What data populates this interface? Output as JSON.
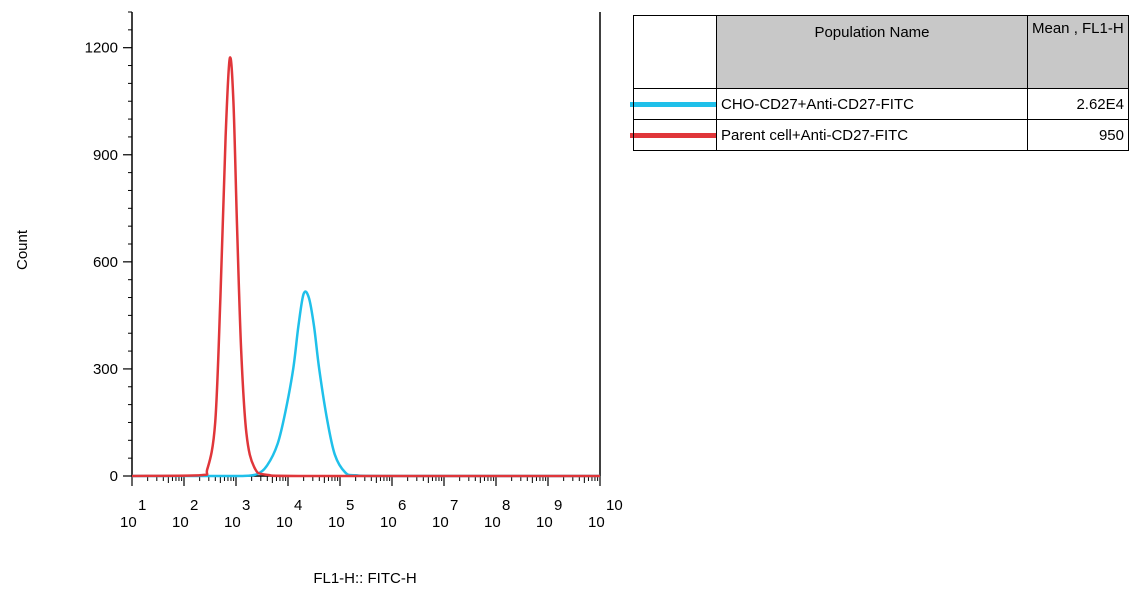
{
  "chart_data": {
    "type": "line",
    "title": "",
    "xlabel": "FL1-H:: FITC-H",
    "ylabel": "Count",
    "x_scale": "log",
    "xlim": [
      1,
      10
    ],
    "ylim": [
      0,
      1300
    ],
    "y_ticks": [
      0,
      300,
      600,
      900,
      1200
    ],
    "x_tick_exponents": [
      "1",
      "2",
      "3",
      "4",
      "5",
      "6",
      "7",
      "8",
      "9",
      "10"
    ],
    "x_tick_base": "10",
    "series": [
      {
        "name": "CHO-CD27+Anti-CD27-FITC",
        "color": "#1fc0ea",
        "x": [
          1.0,
          2.8,
          3.1,
          3.4,
          3.6,
          3.8,
          3.95,
          4.1,
          4.2,
          4.3,
          4.4,
          4.5,
          4.6,
          4.75,
          4.9,
          5.1,
          5.3,
          6.0,
          10.0
        ],
        "y": [
          0,
          0,
          0,
          5,
          30,
          90,
          180,
          300,
          420,
          510,
          500,
          420,
          300,
          160,
          60,
          10,
          2,
          0,
          0
        ]
      },
      {
        "name": "Parent cell+Anti-CD27-FITC",
        "color": "#e0363a",
        "x": [
          1.0,
          2.3,
          2.45,
          2.6,
          2.7,
          2.8,
          2.88,
          2.95,
          3.02,
          3.1,
          3.2,
          3.35,
          3.6,
          4.5,
          10.0
        ],
        "y": [
          0,
          2,
          20,
          150,
          500,
          950,
          1170,
          1050,
          700,
          350,
          120,
          25,
          3,
          0,
          0
        ]
      }
    ]
  },
  "legend_table": {
    "header_name": "Population Name",
    "header_mean": "Mean , FL1-H",
    "rows": [
      {
        "name": "CHO-CD27+Anti-CD27-FITC",
        "value": "2.62E4",
        "color": "#1fc0ea"
      },
      {
        "name": "Parent cell+Anti-CD27-FITC",
        "value": "950",
        "color": "#e0363a"
      }
    ]
  }
}
